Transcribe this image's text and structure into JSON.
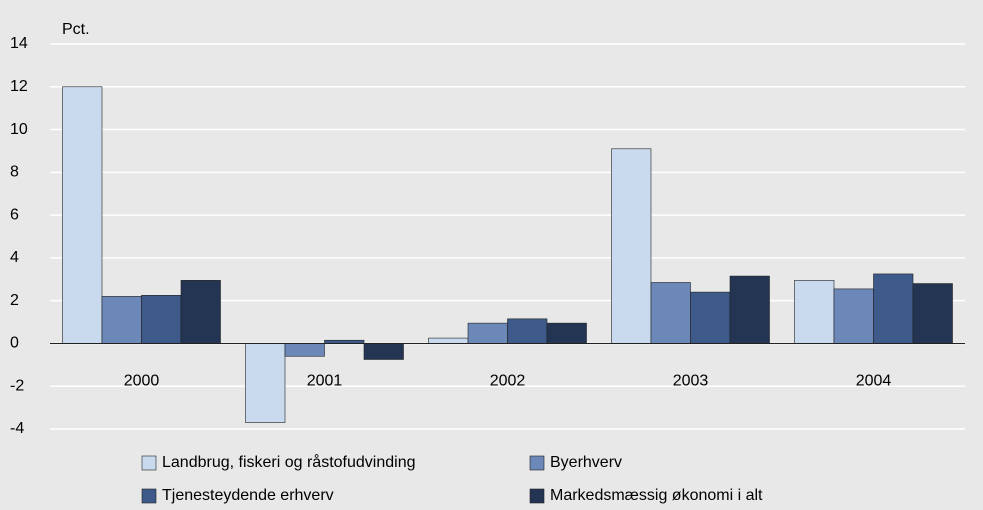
{
  "chart_data": {
    "type": "bar",
    "y_label": "Pct.",
    "categories": [
      "2000",
      "2001",
      "2002",
      "2003",
      "2004"
    ],
    "series": [
      {
        "name": "Landbrug, fiskeri og råstofudvinding",
        "color": "#c9d9ee",
        "values": [
          12.0,
          -3.7,
          0.25,
          9.1,
          2.95
        ]
      },
      {
        "name": "Byerhverv",
        "color": "#6b88b8",
        "values": [
          2.2,
          -0.6,
          0.95,
          2.85,
          2.55
        ]
      },
      {
        "name": "Tjenesteydende erhverv",
        "color": "#3d5a8a",
        "values": [
          2.25,
          0.15,
          1.15,
          2.4,
          3.25
        ]
      },
      {
        "name": "Markedsmæssig økonomi i alt",
        "color": "#243553",
        "values": [
          2.95,
          -0.75,
          0.95,
          3.15,
          2.8
        ]
      }
    ],
    "ylim": [
      -4,
      14
    ],
    "yticks": [
      -4,
      -2,
      0,
      2,
      4,
      6,
      8,
      10,
      12,
      14
    ],
    "grid": true,
    "legend": "bottom"
  }
}
